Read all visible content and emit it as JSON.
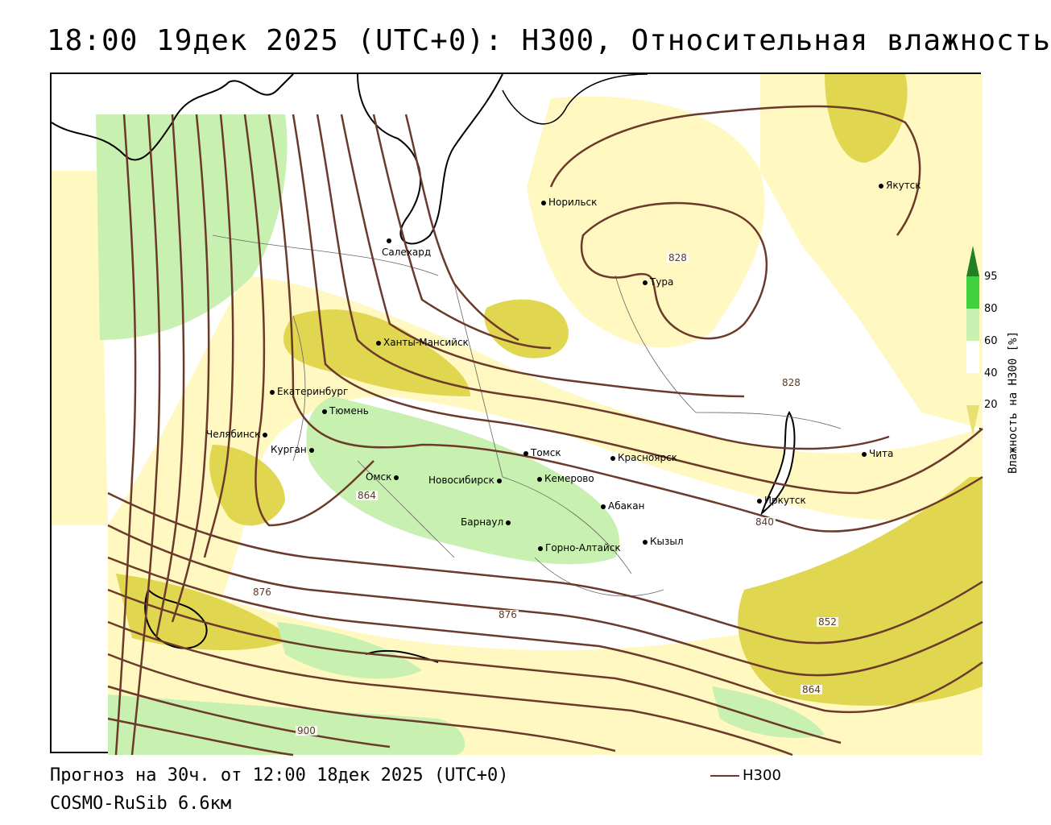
{
  "title": "18:00 19дек 2025 (UTC+0): Н300, Относительная влажность",
  "forecast": "Прогноз на 30ч. от 12:00 18дек 2025 (UTC+0)",
  "model": "COSMO-RuSib 6.6км",
  "legend": {
    "line_label": "Н300",
    "line_color": "#6b3a2a"
  },
  "colorbar": {
    "title": "Влажность на Н300 [%]",
    "ticks": [
      "95",
      "80",
      "60",
      "40",
      "20"
    ],
    "colors": {
      "lt20": "#ffffff",
      "20_40": "#fff8c0",
      "40_60": "#e8e070",
      "60_80": "#c8f0b0",
      "80_95": "#40d040",
      "gt95": "#208020"
    }
  },
  "cities": [
    {
      "name": "Норильск"
    },
    {
      "name": "Якутск"
    },
    {
      "name": "Салехард"
    },
    {
      "name": "Тура"
    },
    {
      "name": "Ханты-Мансийск"
    },
    {
      "name": "Екатеринбург"
    },
    {
      "name": "Тюмень"
    },
    {
      "name": "Челябинск"
    },
    {
      "name": "Курган"
    },
    {
      "name": "Томск"
    },
    {
      "name": "Красноярск"
    },
    {
      "name": "Омск"
    },
    {
      "name": "Новосибирск"
    },
    {
      "name": "Кемерово"
    },
    {
      "name": "Абакан"
    },
    {
      "name": "Барнаул"
    },
    {
      "name": "Горно-Алтайск"
    },
    {
      "name": "Кызыл"
    },
    {
      "name": "Иркутск"
    },
    {
      "name": "Чита"
    }
  ],
  "isolines": [
    "828",
    "828",
    "840",
    "852",
    "864",
    "864",
    "876",
    "876",
    "900"
  ]
}
